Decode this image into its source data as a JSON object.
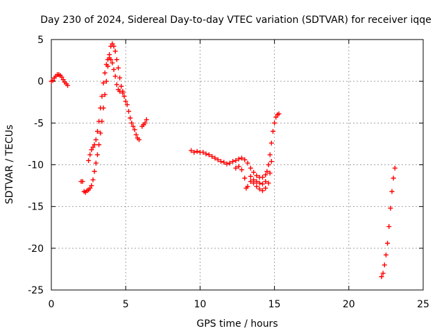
{
  "chart_data": {
    "type": "scatter",
    "title": "Day 230 of 2024, Sidereal Day-to-day VTEC variation (SDTVAR) for receiver iqqe",
    "xlabel": "GPS time / hours",
    "ylabel": "SDTVAR / TECUs",
    "xlim": [
      0,
      25
    ],
    "ylim": [
      -25,
      5
    ],
    "xticks": [
      "0",
      "5",
      "10",
      "15",
      "20",
      "25"
    ],
    "yticks": [
      "5",
      "0",
      "-5",
      "-10",
      "-15",
      "-20",
      "-25"
    ],
    "grid": true,
    "marker": "plus",
    "color": "#ff0000",
    "series": [
      {
        "name": "SDTVAR",
        "points": [
          [
            0.0,
            0.0
          ],
          [
            0.1,
            0.1
          ],
          [
            0.2,
            0.4
          ],
          [
            0.3,
            0.6
          ],
          [
            0.4,
            0.8
          ],
          [
            0.5,
            0.8
          ],
          [
            0.6,
            0.7
          ],
          [
            0.7,
            0.5
          ],
          [
            0.8,
            0.2
          ],
          [
            0.9,
            -0.1
          ],
          [
            1.0,
            -0.3
          ],
          [
            1.1,
            -0.5
          ],
          [
            2.0,
            -12.0
          ],
          [
            2.1,
            -12.0
          ],
          [
            2.2,
            -13.2
          ],
          [
            2.3,
            -13.3
          ],
          [
            2.4,
            -13.1
          ],
          [
            2.5,
            -13.0
          ],
          [
            2.6,
            -12.8
          ],
          [
            2.7,
            -12.5
          ],
          [
            2.8,
            -11.8
          ],
          [
            2.9,
            -10.8
          ],
          [
            3.0,
            -9.8
          ],
          [
            3.1,
            -8.8
          ],
          [
            3.2,
            -7.6
          ],
          [
            3.3,
            -6.2
          ],
          [
            3.4,
            -4.8
          ],
          [
            3.5,
            -3.2
          ],
          [
            3.6,
            -1.6
          ],
          [
            3.7,
            0.0
          ],
          [
            3.8,
            1.8
          ],
          [
            3.9,
            3.2
          ],
          [
            4.0,
            4.2
          ],
          [
            4.1,
            4.5
          ],
          [
            4.2,
            4.2
          ],
          [
            4.3,
            3.6
          ],
          [
            4.4,
            2.6
          ],
          [
            4.5,
            1.6
          ],
          [
            4.6,
            0.4
          ],
          [
            4.7,
            -0.6
          ],
          [
            4.8,
            -1.2
          ],
          [
            2.5,
            -9.5
          ],
          [
            2.6,
            -8.8
          ],
          [
            2.7,
            -8.2
          ],
          [
            2.8,
            -7.9
          ],
          [
            2.9,
            -7.6
          ],
          [
            3.0,
            -7.0
          ],
          [
            3.1,
            -6.0
          ],
          [
            3.2,
            -4.8
          ],
          [
            3.3,
            -3.2
          ],
          [
            3.4,
            -1.8
          ],
          [
            3.5,
            -0.2
          ],
          [
            3.6,
            1.0
          ],
          [
            3.7,
            2.0
          ],
          [
            3.8,
            2.6
          ],
          [
            3.9,
            2.8
          ],
          [
            4.0,
            2.6
          ],
          [
            4.1,
            2.2
          ],
          [
            4.2,
            1.4
          ],
          [
            4.3,
            0.6
          ],
          [
            4.4,
            -0.4
          ],
          [
            4.5,
            -1.0
          ],
          [
            4.6,
            -1.2
          ],
          [
            4.8,
            -1.4
          ],
          [
            4.9,
            -1.8
          ],
          [
            5.0,
            -2.4
          ],
          [
            5.1,
            -2.8
          ],
          [
            5.2,
            -3.6
          ],
          [
            5.3,
            -4.4
          ],
          [
            5.4,
            -5.0
          ],
          [
            5.5,
            -5.4
          ],
          [
            5.6,
            -5.8
          ],
          [
            5.7,
            -6.4
          ],
          [
            5.8,
            -6.8
          ],
          [
            5.9,
            -7.0
          ],
          [
            6.1,
            -5.4
          ],
          [
            6.2,
            -5.2
          ],
          [
            6.3,
            -5.0
          ],
          [
            6.4,
            -4.6
          ],
          [
            9.4,
            -8.3
          ],
          [
            9.6,
            -8.5
          ],
          [
            9.8,
            -8.4
          ],
          [
            10.0,
            -8.5
          ],
          [
            10.2,
            -8.5
          ],
          [
            10.4,
            -8.7
          ],
          [
            10.6,
            -8.8
          ],
          [
            10.8,
            -9.0
          ],
          [
            11.0,
            -9.2
          ],
          [
            11.2,
            -9.4
          ],
          [
            11.4,
            -9.6
          ],
          [
            11.6,
            -9.7
          ],
          [
            11.8,
            -9.9
          ],
          [
            12.0,
            -9.8
          ],
          [
            12.2,
            -9.6
          ],
          [
            12.4,
            -9.5
          ],
          [
            12.6,
            -9.3
          ],
          [
            12.8,
            -9.2
          ],
          [
            13.0,
            -9.4
          ],
          [
            13.2,
            -9.8
          ],
          [
            13.4,
            -10.4
          ],
          [
            13.6,
            -10.9
          ],
          [
            13.8,
            -11.3
          ],
          [
            14.0,
            -11.5
          ],
          [
            14.2,
            -11.5
          ],
          [
            14.4,
            -11.2
          ],
          [
            14.5,
            -10.8
          ],
          [
            14.6,
            -10.0
          ],
          [
            14.7,
            -8.8
          ],
          [
            14.8,
            -7.4
          ],
          [
            14.9,
            -6.0
          ],
          [
            15.0,
            -5.0
          ],
          [
            15.1,
            -4.3
          ],
          [
            15.2,
            -4.0
          ],
          [
            15.3,
            -3.9
          ],
          [
            12.4,
            -10.4
          ],
          [
            12.6,
            -10.2
          ],
          [
            12.8,
            -10.6
          ],
          [
            13.0,
            -11.6
          ],
          [
            13.1,
            -12.8
          ],
          [
            13.2,
            -12.6
          ],
          [
            13.4,
            -12.0
          ],
          [
            13.6,
            -12.2
          ],
          [
            13.8,
            -12.6
          ],
          [
            14.0,
            -12.9
          ],
          [
            14.2,
            -13.1
          ],
          [
            14.4,
            -12.8
          ],
          [
            14.6,
            -12.2
          ],
          [
            14.7,
            -11.0
          ],
          [
            14.8,
            -9.6
          ],
          [
            13.4,
            -11.4
          ],
          [
            13.6,
            -11.8
          ],
          [
            13.8,
            -12.0
          ],
          [
            14.0,
            -12.2
          ],
          [
            14.2,
            -12.3
          ],
          [
            14.4,
            -12.0
          ],
          [
            22.2,
            -23.4
          ],
          [
            22.3,
            -23.0
          ],
          [
            22.4,
            -22.0
          ],
          [
            22.5,
            -20.8
          ],
          [
            22.6,
            -19.4
          ],
          [
            22.7,
            -17.4
          ],
          [
            22.8,
            -15.2
          ],
          [
            22.9,
            -13.2
          ],
          [
            23.0,
            -11.6
          ],
          [
            23.1,
            -10.4
          ]
        ]
      }
    ]
  }
}
